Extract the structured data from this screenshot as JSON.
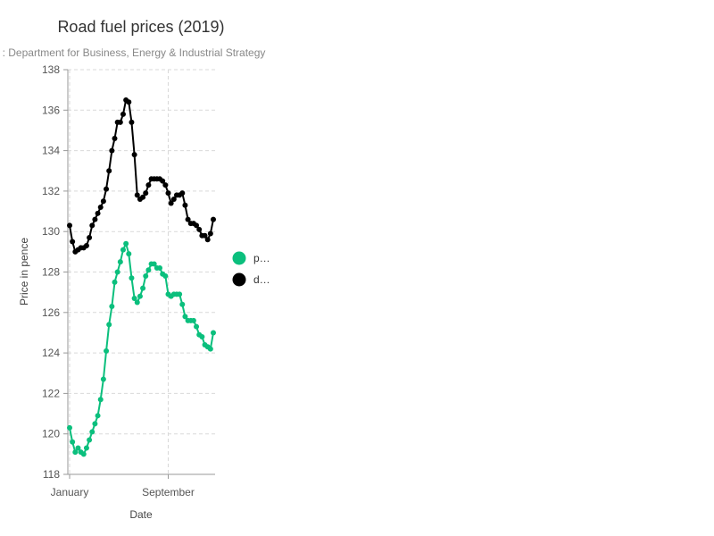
{
  "chart_data": {
    "type": "line",
    "title": "Road fuel prices (2019)",
    "subtitle": ": Department for Business, Energy & Industrial Strategy",
    "xlabel": "Date",
    "ylabel": "Price in pence",
    "ylim": [
      118,
      138
    ],
    "yticks": [
      118,
      120,
      122,
      124,
      126,
      128,
      130,
      132,
      134,
      136,
      138
    ],
    "xticks": [
      {
        "label": "January",
        "week": 1
      },
      {
        "label": "September",
        "week": 36
      }
    ],
    "x_weeks": [
      1,
      2,
      3,
      4,
      5,
      6,
      7,
      8,
      9,
      10,
      11,
      12,
      13,
      14,
      15,
      16,
      17,
      18,
      19,
      20,
      21,
      22,
      23,
      24,
      25,
      26,
      27,
      28,
      29,
      30,
      31,
      32,
      33,
      34,
      35,
      36,
      37,
      38,
      39,
      40,
      41,
      42,
      43,
      44,
      45,
      46,
      47,
      48,
      49,
      50,
      51,
      52
    ],
    "grid": true,
    "legend_position": "right",
    "series": [
      {
        "name": "p…",
        "color": "#0bbf7d",
        "values": [
          120.3,
          119.6,
          119.1,
          119.3,
          119.1,
          119.0,
          119.3,
          119.7,
          120.1,
          120.5,
          120.9,
          121.7,
          122.7,
          124.1,
          125.4,
          126.3,
          127.5,
          128.0,
          128.5,
          129.1,
          129.4,
          128.9,
          127.7,
          126.7,
          126.5,
          126.8,
          127.2,
          127.8,
          128.1,
          128.4,
          128.4,
          128.2,
          128.2,
          127.9,
          127.8,
          126.9,
          126.8,
          126.9,
          126.9,
          126.9,
          126.4,
          125.8,
          125.6,
          125.6,
          125.6,
          125.3,
          124.9,
          124.8,
          124.4,
          124.3,
          124.2,
          125.0
        ]
      },
      {
        "name": "d…",
        "color": "#000000",
        "values": [
          130.3,
          129.5,
          129.0,
          129.1,
          129.2,
          129.2,
          129.3,
          129.7,
          130.3,
          130.6,
          130.9,
          131.2,
          131.5,
          132.1,
          133.0,
          134.0,
          134.6,
          135.4,
          135.4,
          135.8,
          136.5,
          136.4,
          135.4,
          133.8,
          131.8,
          131.6,
          131.7,
          131.9,
          132.3,
          132.6,
          132.6,
          132.6,
          132.6,
          132.5,
          132.3,
          131.9,
          131.4,
          131.6,
          131.8,
          131.8,
          131.9,
          131.3,
          130.6,
          130.4,
          130.4,
          130.3,
          130.1,
          129.8,
          129.8,
          129.6,
          129.9,
          130.6
        ]
      }
    ]
  }
}
